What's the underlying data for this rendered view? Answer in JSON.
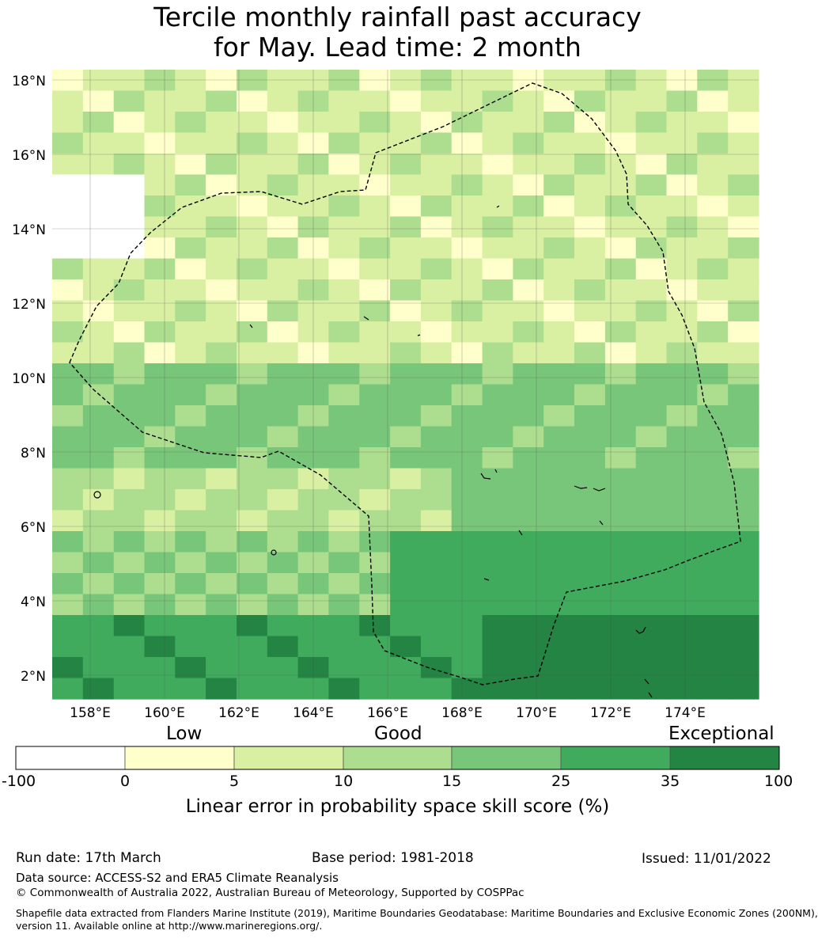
{
  "title_line1": "Tercile monthly rainfall past accuracy",
  "title_line2": "for May. Lead time: 2 month",
  "map": {
    "lat_labels": [
      "18°N",
      "16°N",
      "14°N",
      "12°N",
      "10°N",
      "8°N",
      "6°N",
      "4°N",
      "2°N"
    ],
    "lon_labels": [
      "158°E",
      "160°E",
      "162°E",
      "164°E",
      "166°E",
      "168°E",
      "170°E",
      "172°E",
      "174°E"
    ],
    "lat_range": [
      1.4,
      18.3
    ],
    "lon_range": [
      157.0,
      176.0
    ]
  },
  "colorbar": {
    "category_labels": [
      "Low",
      "Good",
      "Exceptional"
    ],
    "ticks": [
      "-100",
      "0",
      "5",
      "10",
      "15",
      "25",
      "35",
      "100"
    ],
    "colors": [
      "#ffffff",
      "#ffffcc",
      "#d9f0a3",
      "#addd8e",
      "#78c679",
      "#41ab5d",
      "#238443"
    ],
    "label": "Linear error in probability space skill score (%)"
  },
  "footer": {
    "run_date": "Run date: 17th March",
    "base_period": "Base period: 1981-2018",
    "issued": "Issued: 11/01/2022",
    "data_source": "Data source: ACCESS-S2 and ERA5 Climate Reanalysis",
    "copyright": "© Commonwealth of Australia 2022, Australian Bureau of Meteorology, Supported by COSPPac",
    "shapefile_line1": "Shapefile data extracted from Flanders Marine Institute (2019), Maritime Boundaries Geodatabase: Maritime Boundaries and Exclusive Economic Zones (200NM),",
    "shapefile_line2": "version 11. Available online at http://www.marineregions.org/."
  }
}
